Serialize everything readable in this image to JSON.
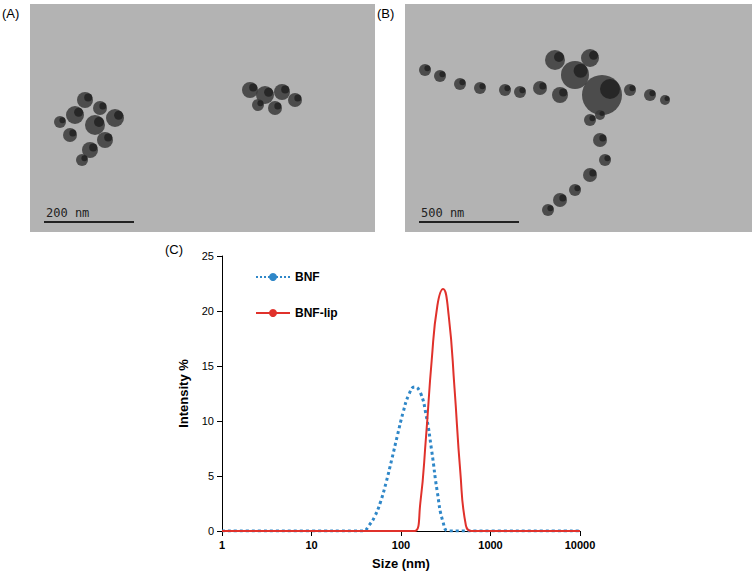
{
  "images": [
    {
      "label": "(A)",
      "scale_bar": "200 nm"
    },
    {
      "label": "(B)",
      "scale_bar": "500 nm"
    }
  ],
  "chart_data": {
    "type": "line",
    "title": "(C)",
    "x_label": "Size (nm)",
    "y_label": "Intensity %",
    "log": "x",
    "grid": false,
    "legend": "upper left",
    "xlim": [
      1,
      10000
    ],
    "xticks": [
      1,
      10,
      100,
      1000,
      10000
    ],
    "ylim": [
      0,
      25
    ],
    "yticks": [
      0,
      5,
      10,
      15,
      20,
      25
    ],
    "series": [
      {
        "name": "BNF",
        "color": "#2f87c8",
        "line_style": "dotted",
        "x": [
          1,
          10,
          30,
          37.8,
          43.8,
          50.7,
          58.8,
          68.1,
          78.8,
          91.3,
          105.7,
          122.4,
          141.8,
          164.2,
          190.1,
          220.2,
          255,
          295.3,
          342,
          1000,
          10000
        ],
        "values": [
          0,
          0,
          0,
          0,
          0.5,
          1.3,
          2.6,
          4.4,
          6.5,
          8.7,
          10.8,
          12.4,
          13.1,
          12.6,
          10.6,
          7.3,
          3.5,
          0.8,
          0,
          0,
          0
        ]
      },
      {
        "name": "BNF-lip",
        "color": "#e0312b",
        "line_style": "solid",
        "x": [
          1,
          10,
          100,
          141.8,
          164.2,
          190.1,
          220.2,
          255,
          295.3,
          342,
          396.1,
          458.7,
          531.2,
          615.1,
          1000,
          10000
        ],
        "values": [
          0,
          0,
          0,
          0,
          2.5,
          8.5,
          15.5,
          20.5,
          22,
          19.5,
          13,
          5.5,
          0.5,
          0,
          0,
          0
        ]
      }
    ]
  }
}
